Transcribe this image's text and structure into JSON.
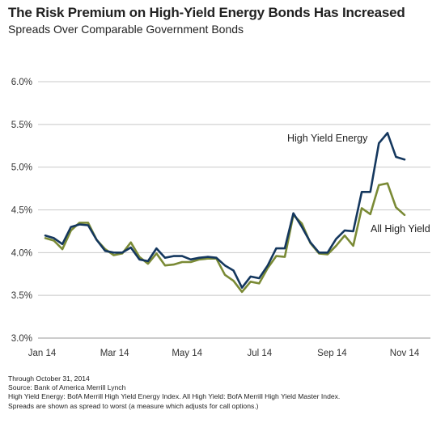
{
  "chart_data": {
    "type": "line",
    "title": "The Risk Premium on High-Yield Energy Bonds Has Increased",
    "subtitle": "Spreads Over Comparable Government Bonds",
    "ylim": [
      3.0,
      6.0
    ],
    "yticks": [
      {
        "value": 3.0,
        "label": "3.0%"
      },
      {
        "value": 3.5,
        "label": "3.5%"
      },
      {
        "value": 4.0,
        "label": "4.0%"
      },
      {
        "value": 4.5,
        "label": "4.5%"
      },
      {
        "value": 5.0,
        "label": "5.0%"
      },
      {
        "value": 5.5,
        "label": "5.5%"
      },
      {
        "value": 6.0,
        "label": "6.0%"
      }
    ],
    "xticks": [
      "Jan 14",
      "Mar 14",
      "May 14",
      "Jul 14",
      "Sep 14",
      "Nov 14"
    ],
    "grid": true,
    "series": [
      {
        "name": "High Yield Energy",
        "color": "#14375e",
        "values": [
          4.2,
          4.17,
          4.1,
          4.3,
          4.33,
          4.32,
          4.15,
          4.02,
          4.0,
          4.0,
          4.06,
          3.92,
          3.9,
          4.05,
          3.94,
          3.96,
          3.96,
          3.92,
          3.94,
          3.95,
          3.94,
          3.85,
          3.79,
          3.59,
          3.72,
          3.7,
          3.85,
          4.05,
          4.05,
          4.46,
          4.3,
          4.12,
          4.0,
          4.0,
          4.16,
          4.26,
          4.25,
          4.71,
          4.71,
          5.28,
          5.4,
          5.12,
          5.09
        ]
      },
      {
        "name": "All High Yield",
        "color": "#7a8a35",
        "values": [
          4.17,
          4.14,
          4.04,
          4.26,
          4.35,
          4.35,
          4.15,
          4.04,
          3.97,
          3.99,
          4.12,
          3.95,
          3.87,
          3.99,
          3.85,
          3.86,
          3.89,
          3.89,
          3.92,
          3.93,
          3.93,
          3.74,
          3.67,
          3.54,
          3.66,
          3.64,
          3.82,
          3.96,
          3.95,
          4.44,
          4.34,
          4.11,
          3.99,
          3.98,
          4.08,
          4.2,
          4.08,
          4.52,
          4.45,
          4.79,
          4.81,
          4.53,
          4.44
        ]
      }
    ]
  },
  "notes": {
    "through": "Through October 31, 2014",
    "source": "Source: Bank of America Merrill Lynch",
    "definitions": "High Yield Energy: BofA Merrill High Yield Energy Index. All High Yield: BofA Merrill High Yield Master Index.",
    "spreads": "Spreads are shown as spread to worst (a measure which adjusts for call options.)"
  }
}
